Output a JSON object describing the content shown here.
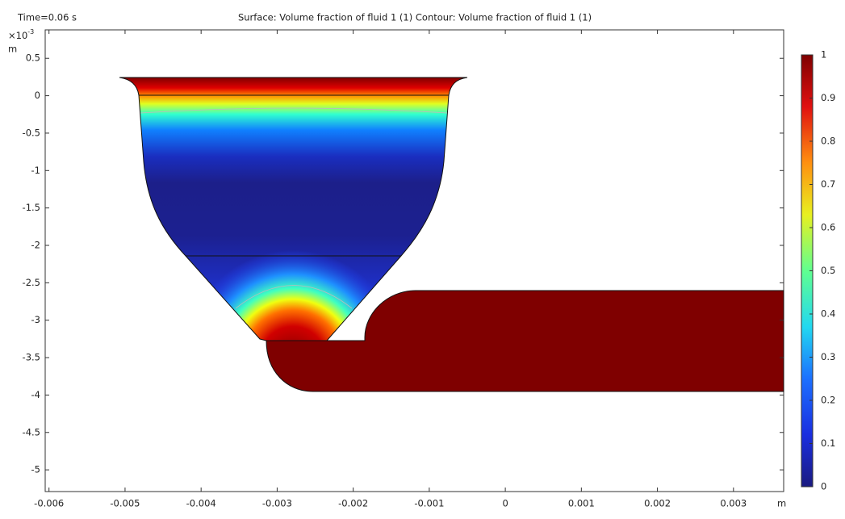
{
  "chart_data": {
    "type": "surface",
    "time_label": "Time=0.06 s",
    "title": "Surface: Volume fraction of fluid 1 (1)  Contour: Volume fraction of fluid 1 (1)",
    "y_scale_label": "×10",
    "y_scale_exponent": "-3",
    "y_unit": "m",
    "x_unit": "m",
    "xlim": [
      -0.00605,
      0.00366
    ],
    "xticks": [
      -0.006,
      -0.005,
      -0.004,
      -0.003,
      -0.002,
      -0.001,
      0,
      0.001,
      0.002,
      0.003
    ],
    "ylim": [
      -5.29,
      0.88
    ],
    "yticks": [
      0.5,
      0,
      -0.5,
      -1,
      -1.5,
      -2,
      -2.5,
      -3,
      -3.5,
      -4,
      -4.5,
      -5
    ],
    "clim": [
      0,
      1
    ],
    "cticks": [
      0,
      0.1,
      0.2,
      0.3,
      0.4,
      0.5,
      0.6,
      0.7,
      0.8,
      0.9,
      1
    ],
    "colormap": "rainbow"
  }
}
